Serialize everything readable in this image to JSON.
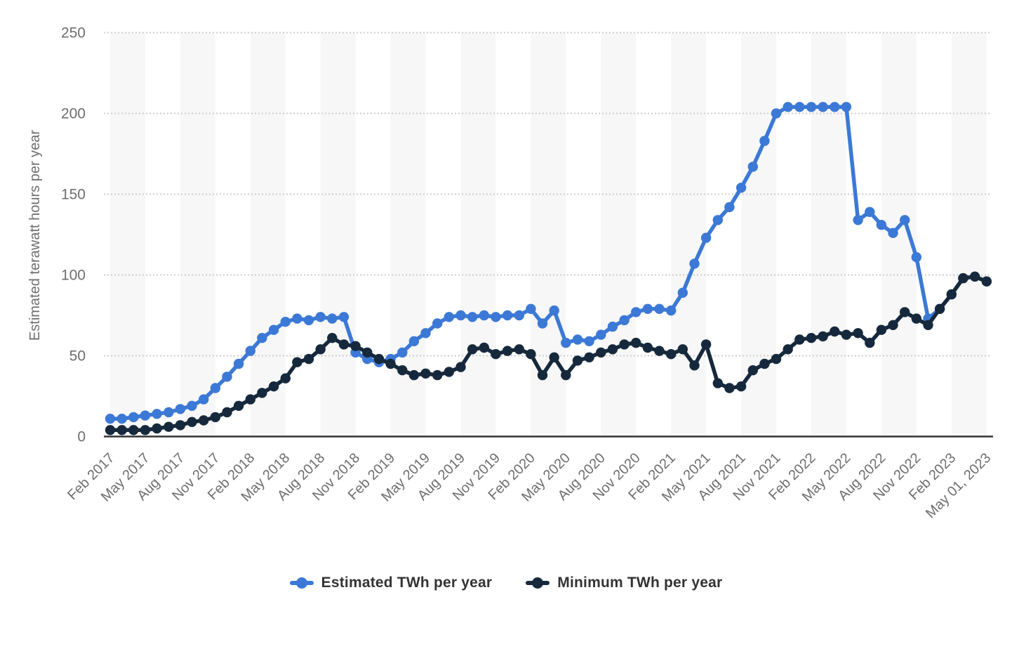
{
  "page": {
    "background": "#ffffff"
  },
  "chart_data": {
    "type": "line",
    "title": "",
    "ylabel": "Estimated terawatt hours per year",
    "ylim": [
      0,
      250
    ],
    "yticks": [
      0,
      50,
      100,
      150,
      200,
      250
    ],
    "y_tick_labels": [
      "0",
      "50",
      "100",
      "150",
      "200",
      "250"
    ],
    "grid": "horizontal-dotted",
    "gridline_color": "#cccccc",
    "plot_band_color": "#f7f7f7",
    "axis_line_color": "#333333",
    "axis_text_color": "#6e6e6e",
    "legend_position": "bottom",
    "x_tick_every": 3,
    "x_tick_labels": [
      "Feb 2017",
      "May 2017",
      "Aug 2017",
      "Nov 2017",
      "Feb 2018",
      "May 2018",
      "Aug 2018",
      "Nov 2018",
      "Feb 2019",
      "May 2019",
      "Aug 2019",
      "Nov 2019",
      "Feb 2020",
      "May 2020",
      "Aug 2020",
      "Nov 2020",
      "Feb 2021",
      "May 2021",
      "Aug 2021",
      "Nov 2021",
      "Feb 2022",
      "May 2022",
      "Aug 2022",
      "Nov 2022",
      "Feb 2023",
      "May 01, 2023"
    ],
    "x_start": "Feb 2017",
    "x_end": "May 01, 2023",
    "points_per_series": 76,
    "series": [
      {
        "name": "Estimated TWh per year",
        "color": "#3c79d6",
        "values": [
          11,
          11,
          12,
          13,
          14,
          15,
          17,
          19,
          23,
          30,
          37,
          45,
          53,
          61,
          66,
          71,
          73,
          72,
          74,
          73,
          74,
          52,
          48,
          46,
          48,
          52,
          59,
          64,
          70,
          74,
          75,
          74,
          75,
          74,
          75,
          75,
          79,
          70,
          78,
          58,
          60,
          59,
          63,
          68,
          72,
          77,
          79,
          79,
          78,
          89,
          107,
          123,
          134,
          142,
          154,
          167,
          183,
          200,
          204,
          204,
          204,
          204,
          204,
          204,
          134,
          139,
          131,
          126,
          134,
          111,
          73,
          79,
          88,
          98,
          99,
          96
        ]
      },
      {
        "name": "Minimum TWh per year",
        "color": "#16293c",
        "values": [
          4,
          4,
          4,
          4,
          5,
          6,
          7,
          9,
          10,
          12,
          15,
          19,
          23,
          27,
          31,
          36,
          46,
          48,
          54,
          61,
          57,
          56,
          52,
          48,
          45,
          41,
          38,
          39,
          38,
          40,
          43,
          54,
          55,
          51,
          53,
          54,
          51,
          38,
          49,
          38,
          47,
          49,
          52,
          54,
          57,
          58,
          55,
          53,
          51,
          54,
          44,
          57,
          33,
          30,
          31,
          41,
          45,
          48,
          54,
          60,
          61,
          62,
          65,
          63,
          64,
          58,
          66,
          69,
          77,
          73,
          69,
          79,
          88,
          98,
          99,
          96
        ]
      }
    ]
  }
}
